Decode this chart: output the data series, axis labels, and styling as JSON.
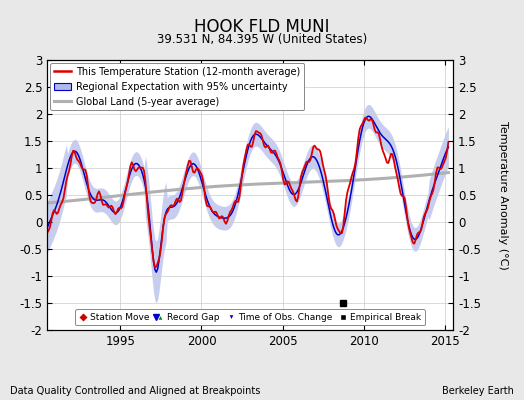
{
  "title": "HOOK FLD MUNI",
  "subtitle": "39.531 N, 84.395 W (United States)",
  "ylabel": "Temperature Anomaly (°C)",
  "xlabel_left": "Data Quality Controlled and Aligned at Breakpoints",
  "xlabel_right": "Berkeley Earth",
  "ylim": [
    -2,
    3
  ],
  "yticks": [
    -2,
    -1.5,
    -1,
    -0.5,
    0,
    0.5,
    1,
    1.5,
    2,
    2.5,
    3
  ],
  "xlim": [
    1990.5,
    2015.5
  ],
  "xticks": [
    1995,
    2000,
    2005,
    2010,
    2015
  ],
  "bg_color": "#e8e8e8",
  "plot_bg_color": "#ffffff",
  "station_color": "#dd0000",
  "regional_color": "#0000cc",
  "regional_fill_color": "#b0b8e8",
  "global_color": "#b0b0b0",
  "legend_labels": [
    "This Temperature Station (12-month average)",
    "Regional Expectation with 95% uncertainty",
    "Global Land (5-year average)"
  ],
  "empirical_break_year": 2008.7,
  "empirical_break_value": -1.5,
  "obs_change_year": 1997.2,
  "obs_change_value": -1.75
}
